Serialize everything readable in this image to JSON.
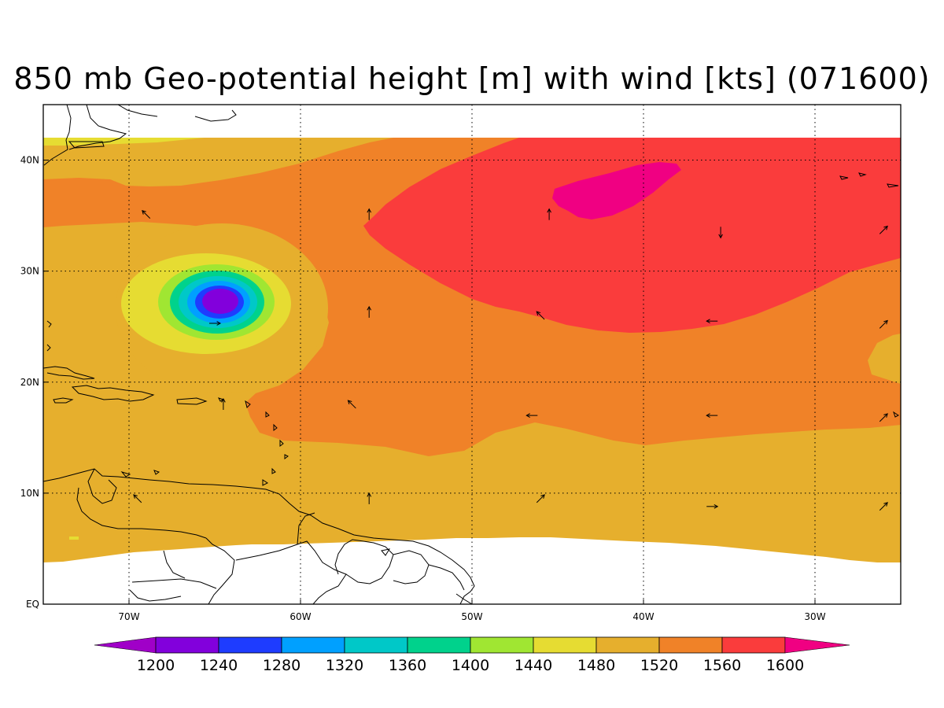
{
  "title": "850 mb Geo-potential height [m] with wind [kts] (071600)",
  "colors": {
    "c1200": "#a000c8",
    "c1240": "#8200dc",
    "c1280": "#1e3cff",
    "c1320": "#00a0ff",
    "c1360": "#00c8c8",
    "c1400": "#00d28c",
    "c1440": "#a0e632",
    "c1480": "#e6dc32",
    "c1520": "#e6af2d",
    "c1560": "#f08228",
    "c1600": "#fa3c3c",
    "c1640": "#f00082",
    "white": "#ffffff",
    "coast": "#000000"
  },
  "chart_data": {
    "type": "heatmap",
    "variable": "850 mb Geo-potential height [m] with wind [kts]",
    "valid_time": "071600",
    "x_ticks": [
      {
        "lon": -70,
        "label": "70W"
      },
      {
        "lon": -60,
        "label": "60W"
      },
      {
        "lon": -50,
        "label": "50W"
      },
      {
        "lon": -40,
        "label": "40W"
      },
      {
        "lon": -30,
        "label": "30W"
      }
    ],
    "y_ticks": [
      {
        "lat": 0,
        "label": "EQ"
      },
      {
        "lat": 10,
        "label": "10N"
      },
      {
        "lat": 20,
        "label": "20N"
      },
      {
        "lat": 30,
        "label": "30N"
      },
      {
        "lat": 40,
        "label": "40N"
      }
    ],
    "lon_range": [
      -75,
      -25
    ],
    "lat_range": [
      0,
      45
    ],
    "grid": "dotted",
    "contour_levels": [
      1200,
      1240,
      1280,
      1320,
      1360,
      1400,
      1440,
      1480,
      1520,
      1560,
      1600
    ],
    "colorbar": {
      "placement": "bottom",
      "extend": "both",
      "labels": [
        "1200",
        "1240",
        "1280",
        "1320",
        "1360",
        "1400",
        "1440",
        "1480",
        "1520",
        "1560",
        "1600"
      ]
    },
    "features": [
      {
        "name": "cyclone low",
        "center_lon": -64.5,
        "center_lat": 27.5,
        "min_height": 1200
      },
      {
        "name": "subtropical high",
        "center_lon": -42,
        "center_lat": 37.5,
        "max_height": 1600
      }
    ],
    "wind_vectors": [
      {
        "lon": -69,
        "lat": 35.1,
        "dir": "NW"
      },
      {
        "lon": -65,
        "lat": 25.3,
        "dir": "E"
      },
      {
        "lon": -64.5,
        "lat": 18,
        "dir": "N"
      },
      {
        "lon": -69.5,
        "lat": 9.5,
        "dir": "NW"
      },
      {
        "lon": -56,
        "lat": 35.1,
        "dir": "N"
      },
      {
        "lon": -56,
        "lat": 26.3,
        "dir": "N"
      },
      {
        "lon": -57,
        "lat": 18,
        "dir": "NW"
      },
      {
        "lon": -56,
        "lat": 9.5,
        "dir": "N"
      },
      {
        "lon": -45.5,
        "lat": 35.1,
        "dir": "N"
      },
      {
        "lon": -46,
        "lat": 26,
        "dir": "NW"
      },
      {
        "lon": -46.5,
        "lat": 17,
        "dir": "W"
      },
      {
        "lon": -46,
        "lat": 9.5,
        "dir": "NE"
      },
      {
        "lon": -35.5,
        "lat": 33.5,
        "dir": "S"
      },
      {
        "lon": -36,
        "lat": 25.5,
        "dir": "W"
      },
      {
        "lon": -36,
        "lat": 17,
        "dir": "W"
      },
      {
        "lon": -36,
        "lat": 8.8,
        "dir": "E"
      },
      {
        "lon": -26,
        "lat": 33.7,
        "dir": "NE"
      },
      {
        "lon": -26,
        "lat": 25.2,
        "dir": "NE"
      },
      {
        "lon": -26,
        "lat": 16.8,
        "dir": "NE"
      },
      {
        "lon": -26,
        "lat": 8.8,
        "dir": "NE"
      }
    ]
  }
}
